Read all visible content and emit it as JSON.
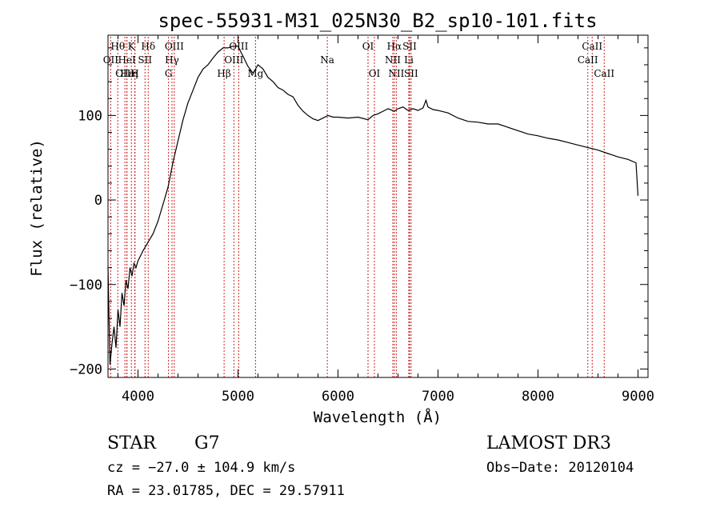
{
  "chart_data": {
    "type": "line",
    "title": "spec-55931-M31_025N30_B2_sp10-101.fits",
    "xlabel": "Wavelength (Å)",
    "ylabel": "Flux (relative)",
    "xlim": [
      3700,
      9100
    ],
    "ylim": [
      -210,
      195
    ],
    "xticks": [
      4000,
      5000,
      6000,
      7000,
      8000,
      9000
    ],
    "yticks": [
      -200,
      -100,
      0,
      100
    ],
    "xtick_labels": [
      "4000",
      "5000",
      "6000",
      "7000",
      "8000",
      "9000"
    ],
    "ytick_labels": [
      "−200",
      "−100",
      "0",
      "100"
    ],
    "series": [
      {
        "name": "flux",
        "x": [
          3700,
          3720,
          3740,
          3760,
          3780,
          3800,
          3820,
          3840,
          3860,
          3880,
          3900,
          3920,
          3940,
          3960,
          3980,
          4000,
          4050,
          4100,
          4150,
          4200,
          4250,
          4300,
          4350,
          4400,
          4450,
          4500,
          4550,
          4600,
          4650,
          4700,
          4750,
          4800,
          4850,
          4900,
          4950,
          5000,
          5050,
          5100,
          5150,
          5200,
          5250,
          5300,
          5350,
          5400,
          5450,
          5500,
          5550,
          5600,
          5650,
          5700,
          5750,
          5800,
          5850,
          5900,
          5950,
          6000,
          6100,
          6200,
          6300,
          6350,
          6400,
          6450,
          6500,
          6563,
          6600,
          6650,
          6700,
          6750,
          6800,
          6850,
          6880,
          6900,
          6950,
          7000,
          7100,
          7200,
          7300,
          7400,
          7500,
          7600,
          7700,
          7800,
          7900,
          8000,
          8100,
          8200,
          8300,
          8400,
          8500,
          8600,
          8700,
          8800,
          8900,
          8980,
          9000
        ],
        "y": [
          -80,
          -195,
          -170,
          -150,
          -175,
          -130,
          -150,
          -110,
          -125,
          -95,
          -105,
          -80,
          -90,
          -75,
          -80,
          -72,
          -60,
          -50,
          -40,
          -25,
          -5,
          15,
          45,
          70,
          95,
          115,
          130,
          145,
          155,
          160,
          168,
          175,
          180,
          180,
          182,
          182,
          170,
          158,
          150,
          160,
          155,
          145,
          140,
          133,
          130,
          125,
          122,
          112,
          105,
          100,
          96,
          94,
          97,
          100,
          98,
          98,
          97,
          98,
          95,
          100,
          102,
          105,
          108,
          105,
          108,
          110,
          106,
          108,
          106,
          109,
          118,
          110,
          107,
          106,
          103,
          97,
          93,
          92,
          90,
          90,
          86,
          82,
          78,
          76,
          73,
          71,
          68,
          65,
          62,
          59,
          55,
          51,
          48,
          44,
          5
        ]
      }
    ],
    "lines": [
      {
        "label": "Hθ",
        "x": 3798,
        "row": 1
      },
      {
        "label": "OII",
        "x": 3727,
        "row": 2
      },
      {
        "label": "OIII",
        "x": 3869,
        "row": 3
      },
      {
        "label": "HeI",
        "x": 3889,
        "row": 2
      },
      {
        "label": "Hε",
        "x": 3889,
        "row": 3
      },
      {
        "label": "K",
        "x": 3934,
        "row": 1
      },
      {
        "label": "η",
        "x": 3970,
        "row": 3
      },
      {
        "label": "H",
        "x": 3968,
        "row": 3
      },
      {
        "label": "SII",
        "x": 4070,
        "row": 2
      },
      {
        "label": "Hδ",
        "x": 4102,
        "row": 1
      },
      {
        "label": "OIII",
        "x": 4363,
        "row": 1
      },
      {
        "label": "Hγ",
        "x": 4340,
        "row": 2
      },
      {
        "label": "G",
        "x": 4305,
        "row": 3
      },
      {
        "label": "Hβ",
        "x": 4861,
        "row": 3
      },
      {
        "label": "OIII",
        "x": 4959,
        "row": 2
      },
      {
        "label": "OIII",
        "x": 5007,
        "row": 1
      },
      {
        "label": "Mg",
        "x": 5175,
        "row": 3
      },
      {
        "label": "Na",
        "x": 5893,
        "row": 2
      },
      {
        "label": "OI",
        "x": 6300,
        "row": 1
      },
      {
        "label": "OI",
        "x": 6364,
        "row": 3
      },
      {
        "label": "Hα",
        "x": 6563,
        "row": 1
      },
      {
        "label": "NII",
        "x": 6548,
        "row": 2
      },
      {
        "label": "NII",
        "x": 6583,
        "row": 3
      },
      {
        "label": "SII",
        "x": 6716,
        "row": 1
      },
      {
        "label": "Li",
        "x": 6708,
        "row": 2
      },
      {
        "label": "SII",
        "x": 6731,
        "row": 3
      },
      {
        "label": "CaII",
        "x": 8542,
        "row": 1
      },
      {
        "label": "CaII",
        "x": 8498,
        "row": 2
      },
      {
        "label": "CaII",
        "x": 8662,
        "row": 3
      }
    ]
  },
  "footer": {
    "class_label": "STAR",
    "subclass_label": "G7",
    "survey_label": "LAMOST DR3",
    "cz_text": "cz = −27.0 ± 104.9 km/s",
    "obs_date_text": "Obs−Date: 20120104",
    "coords_text": "RA =  23.01785, DEC =  29.57911"
  },
  "colors": {
    "line_marker": "#cc2222",
    "spectrum": "#000000"
  }
}
